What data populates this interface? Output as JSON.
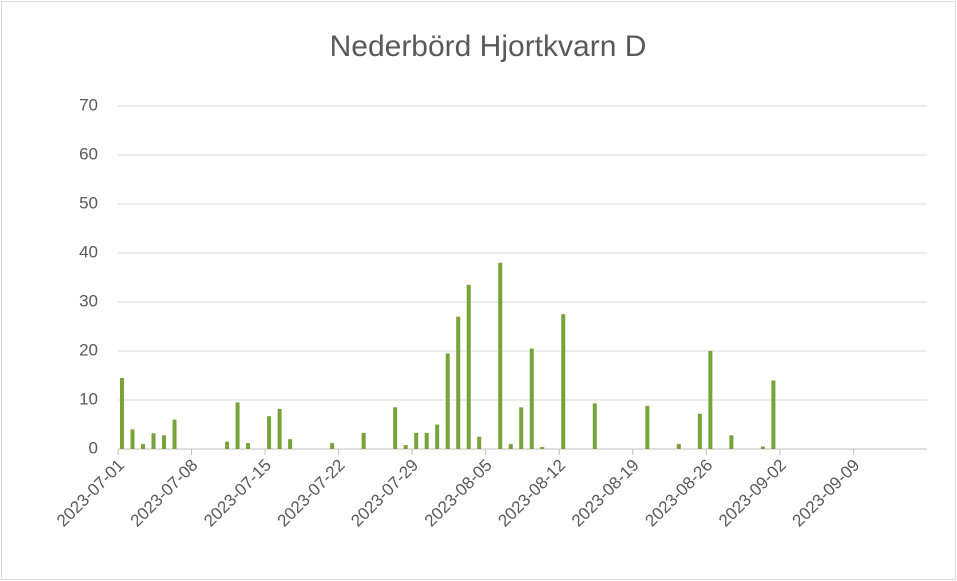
{
  "chart_data": {
    "type": "bar",
    "title": "Nederbörd Hjortkvarn D",
    "color": "#77a33a",
    "grid": true,
    "x": [
      "2023-07-01",
      "2023-07-02",
      "2023-07-03",
      "2023-07-04",
      "2023-07-05",
      "2023-07-06",
      "2023-07-11",
      "2023-07-12",
      "2023-07-13",
      "2023-07-15",
      "2023-07-16",
      "2023-07-17",
      "2023-07-21",
      "2023-07-24",
      "2023-07-27",
      "2023-07-28",
      "2023-07-29",
      "2023-07-30",
      "2023-07-31",
      "2023-08-01",
      "2023-08-02",
      "2023-08-03",
      "2023-08-04",
      "2023-08-06",
      "2023-08-07",
      "2023-08-08",
      "2023-08-09",
      "2023-08-10",
      "2023-08-12",
      "2023-08-15",
      "2023-08-20",
      "2023-08-23",
      "2023-08-25",
      "2023-08-26",
      "2023-08-28",
      "2023-08-31",
      "2023-09-01"
    ],
    "values": [
      14.5,
      4,
      1,
      3.2,
      2.8,
      6,
      1.5,
      9.5,
      1.2,
      6.7,
      8.2,
      2,
      1.2,
      3.3,
      8.5,
      0.8,
      3.3,
      3.3,
      5,
      19.5,
      27,
      33.5,
      2.5,
      38,
      1,
      8.5,
      20.5,
      0.4,
      27.5,
      9.3,
      8.8,
      1,
      7.2,
      20,
      2.8,
      0.5,
      14
    ],
    "xlim": [
      "2023-07-01",
      "2023-09-16"
    ],
    "xticks": [
      "2023-07-01",
      "2023-07-08",
      "2023-07-15",
      "2023-07-22",
      "2023-07-29",
      "2023-08-05",
      "2023-08-12",
      "2023-08-19",
      "2023-08-26",
      "2023-09-02",
      "2023-09-09"
    ],
    "ylim": [
      0,
      70
    ],
    "yticks": [
      0,
      10,
      20,
      30,
      40,
      50,
      60,
      70
    ]
  }
}
